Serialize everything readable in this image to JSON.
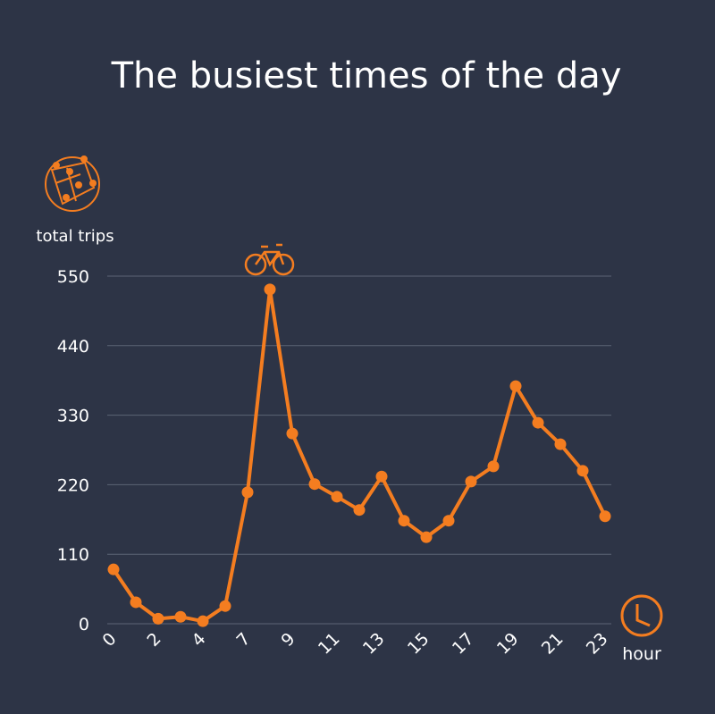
{
  "chart_data": {
    "type": "line",
    "title": "The busiest times of the day",
    "y_label": "total trips",
    "x_label": "hour",
    "categories": [
      "0",
      null,
      "2",
      null,
      "4",
      null,
      "7",
      null,
      "9",
      null,
      "11",
      null,
      "13",
      null,
      "15",
      null,
      "17",
      null,
      "19",
      null,
      "21",
      null,
      "23"
    ],
    "series": [
      {
        "name": "trips",
        "color": "#f47d20",
        "values": [
          86,
          34,
          8,
          11,
          4,
          28,
          208,
          529,
          301,
          221,
          201,
          180,
          233,
          163,
          137,
          163,
          225,
          249,
          376,
          318,
          284,
          242,
          170
        ]
      }
    ],
    "ylim": [
      0,
      550
    ],
    "yticks": [
      0,
      110,
      220,
      330,
      440,
      550
    ],
    "grid": true
  }
}
